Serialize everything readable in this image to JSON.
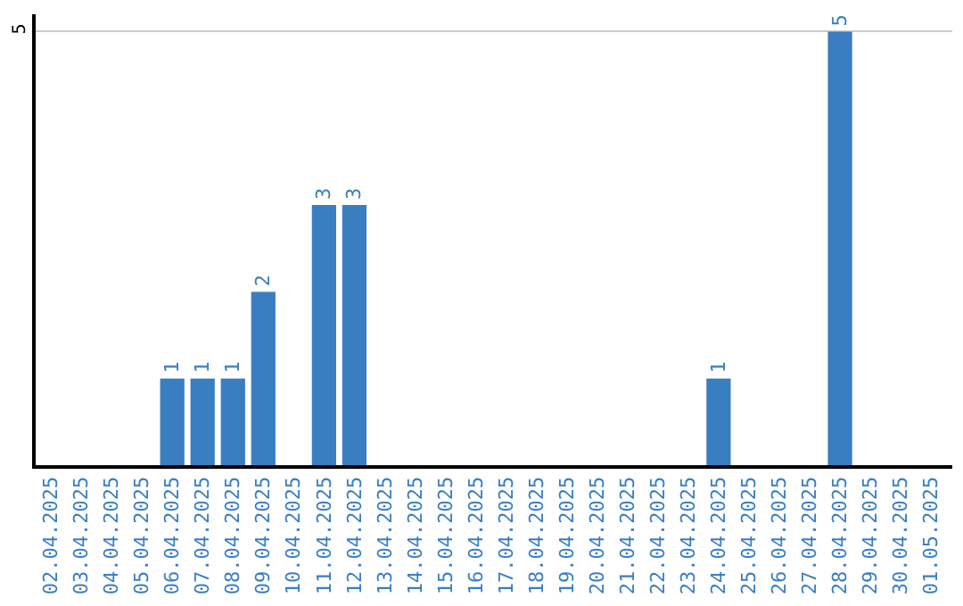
{
  "chart_data": {
    "type": "bar",
    "categories": [
      "02.04.2025",
      "03.04.2025",
      "04.04.2025",
      "05.04.2025",
      "06.04.2025",
      "07.04.2025",
      "08.04.2025",
      "09.04.2025",
      "10.04.2025",
      "11.04.2025",
      "12.04.2025",
      "13.04.2025",
      "14.04.2025",
      "15.04.2025",
      "16.04.2025",
      "17.04.2025",
      "18.04.2025",
      "19.04.2025",
      "20.04.2025",
      "21.04.2025",
      "22.04.2025",
      "23.04.2025",
      "24.04.2025",
      "25.04.2025",
      "26.04.2025",
      "27.04.2025",
      "28.04.2025",
      "29.04.2025",
      "30.04.2025",
      "01.05.2025"
    ],
    "values": [
      0,
      0,
      0,
      0,
      1,
      1,
      1,
      2,
      0,
      3,
      3,
      0,
      0,
      0,
      0,
      0,
      0,
      0,
      0,
      0,
      0,
      0,
      1,
      0,
      0,
      0,
      5,
      0,
      0,
      0
    ],
    "value_labels": [
      null,
      null,
      null,
      null,
      "1",
      "1",
      "1",
      "2",
      null,
      "3",
      "3",
      null,
      null,
      null,
      null,
      null,
      null,
      null,
      null,
      null,
      null,
      null,
      "1",
      null,
      null,
      null,
      "5",
      null,
      null,
      null
    ],
    "color": "#3a7ec2",
    "ylim": [
      0,
      5.2
    ],
    "yticks": [
      5
    ],
    "grid": "y",
    "legend": false
  }
}
